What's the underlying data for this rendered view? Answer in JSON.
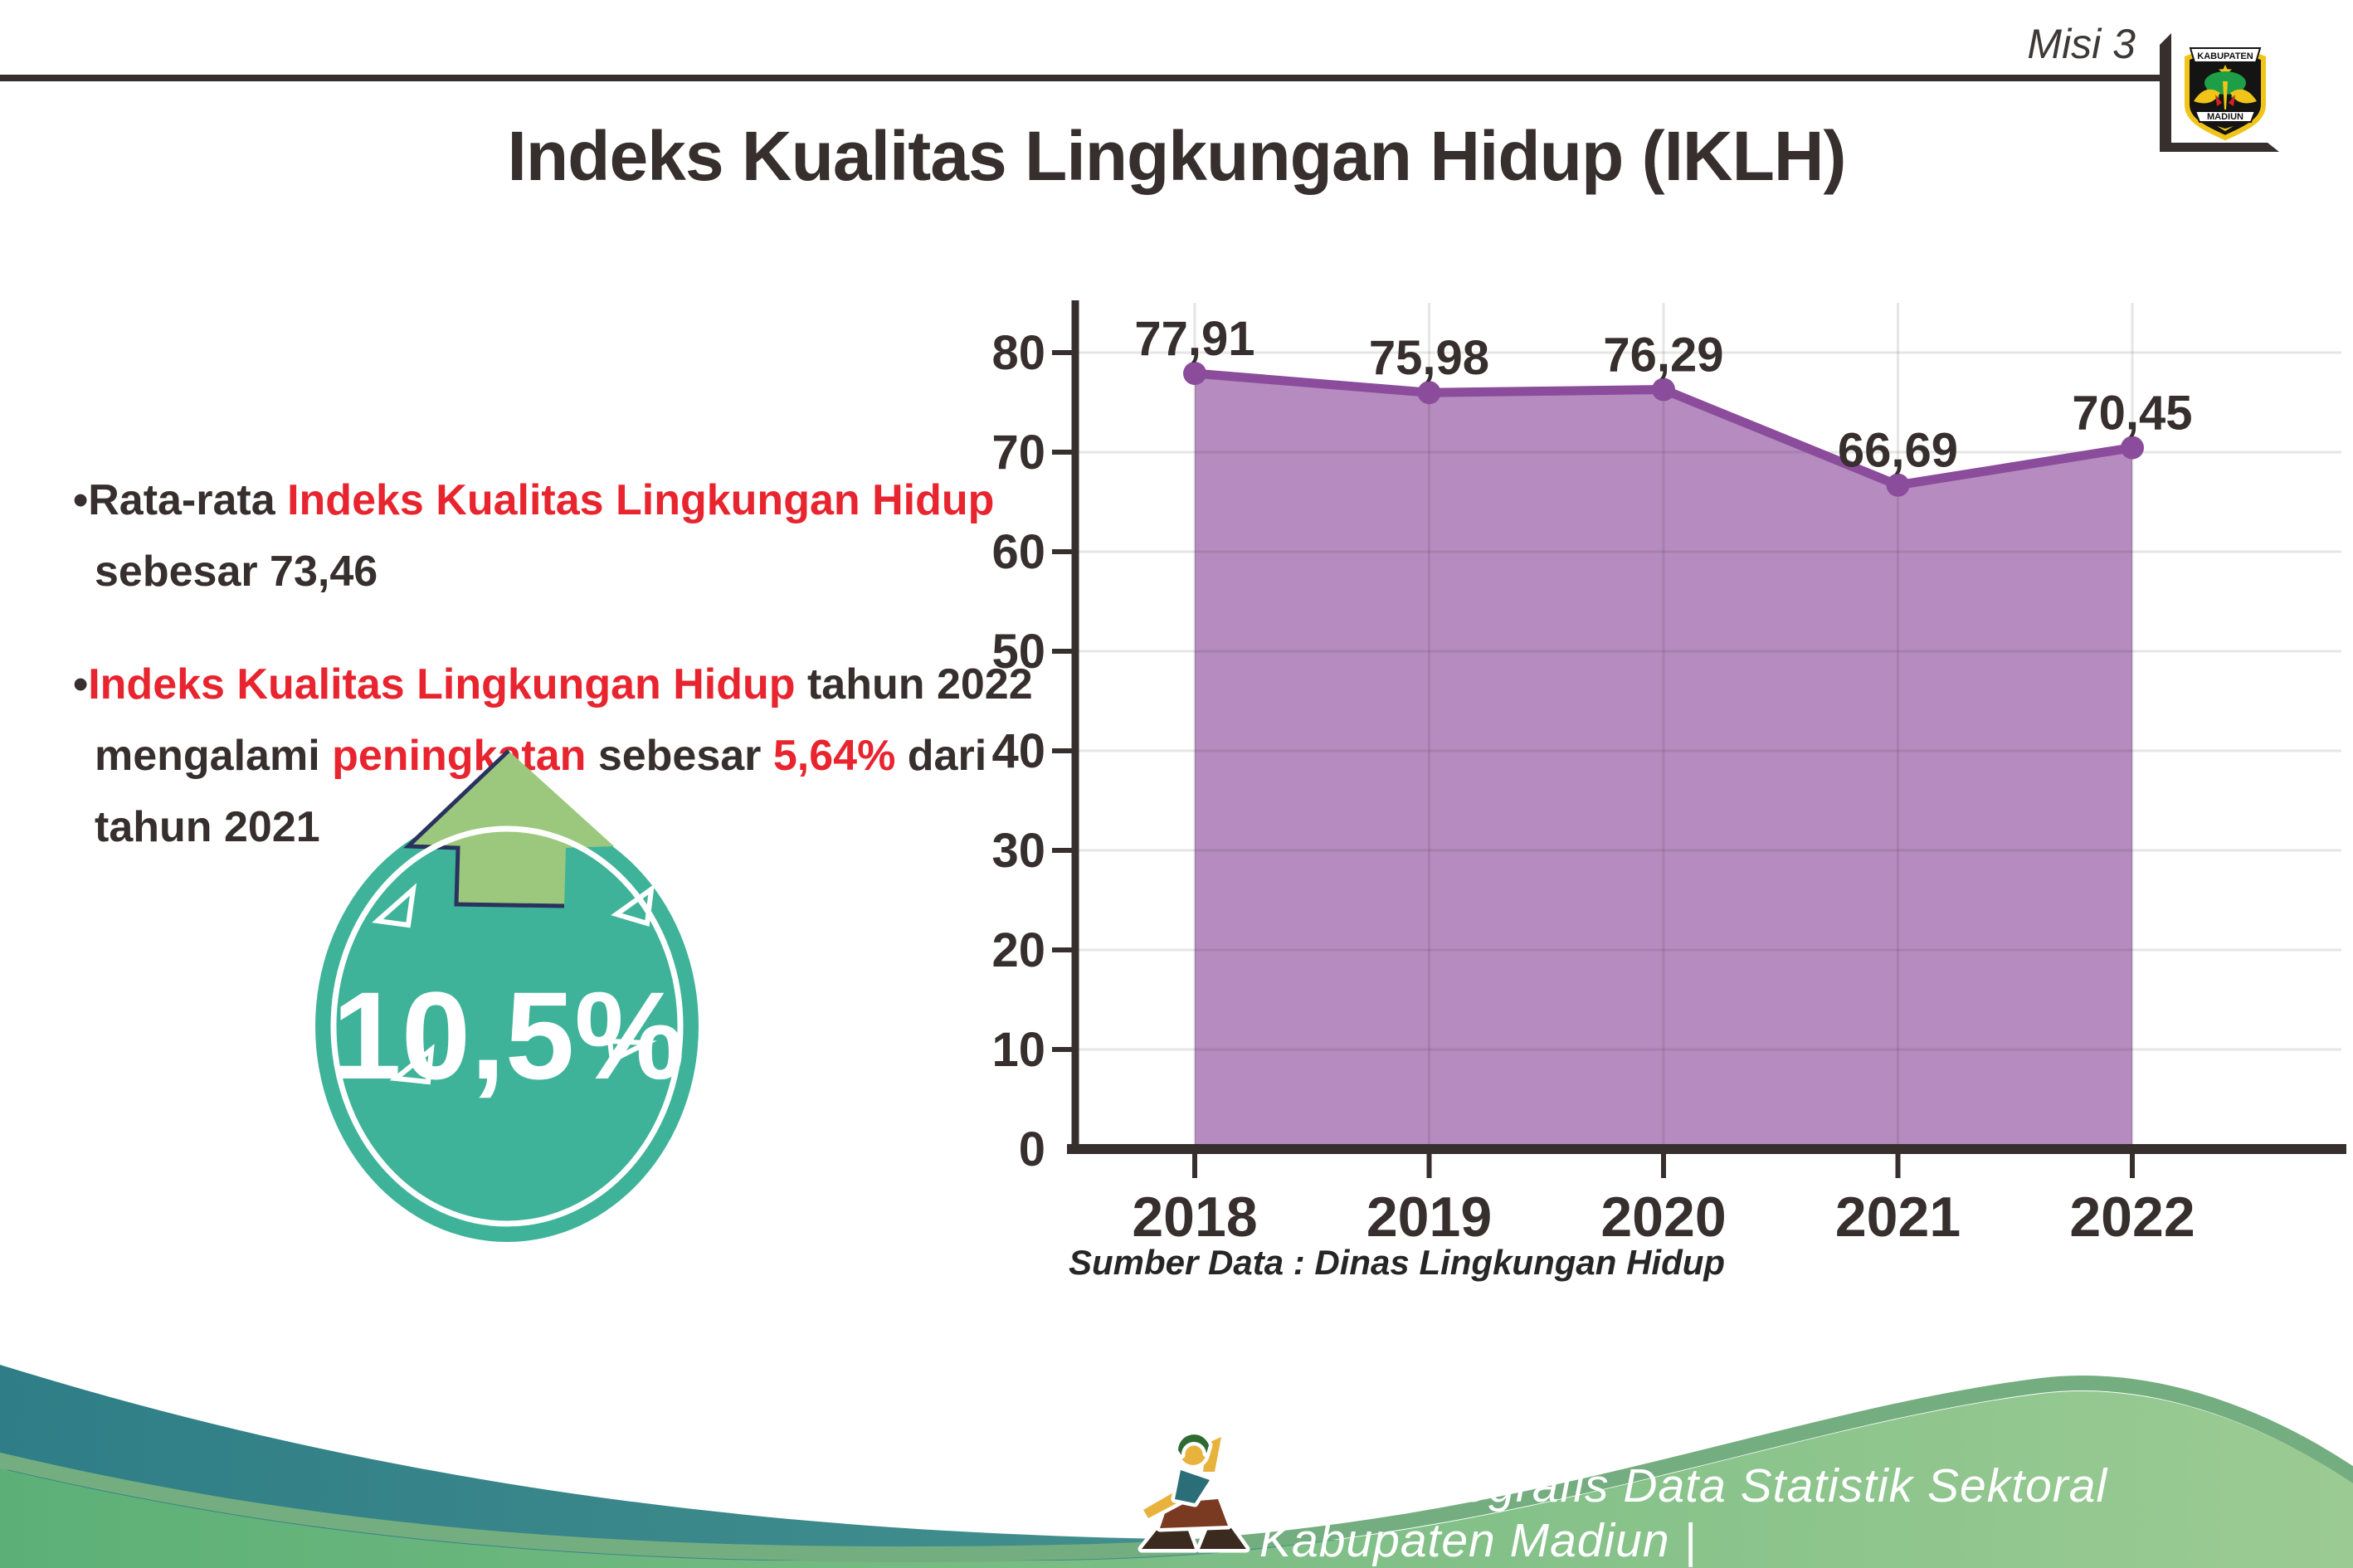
{
  "header": {
    "misi": "Misi 3",
    "title": "Indeks Kualitas Lingkungan Hidup (IKLH)",
    "logo_top": "KABUPATEN",
    "logo_bottom": "MADIUN"
  },
  "bullet_glyph": "•",
  "bullets": [
    {
      "lines": [
        [
          {
            "t": "Rata-rata ",
            "c": "dark"
          },
          {
            "t": "Indeks Kualitas Lingkungan Hidup",
            "c": "red"
          }
        ],
        [
          {
            "t": "sebesar 73,46",
            "c": "dark"
          }
        ]
      ]
    },
    {
      "lines": [
        [
          {
            "t": "Indeks Kualitas Lingkungan Hidup",
            "c": "red"
          },
          {
            "t": " tahun 2022",
            "c": "dark"
          }
        ],
        [
          {
            "t": "mengalami ",
            "c": "dark"
          },
          {
            "t": "peningkatan",
            "c": "red"
          },
          {
            "t": " sebesar ",
            "c": "dark"
          },
          {
            "t": "5,64%",
            "c": "red"
          },
          {
            "t": " dari",
            "c": "dark"
          }
        ],
        [
          {
            "t": "tahun 2021",
            "c": "dark"
          }
        ]
      ]
    }
  ],
  "badge": {
    "value": "10,5%"
  },
  "chart_data": {
    "type": "area",
    "title": "",
    "categories": [
      "2018",
      "2019",
      "2020",
      "2021",
      "2022"
    ],
    "values": [
      77.91,
      75.98,
      76.29,
      66.69,
      70.45
    ],
    "value_labels": [
      "77,91",
      "75,98",
      "76,29",
      "66,69",
      "70,45"
    ],
    "ylim": [
      0,
      80
    ],
    "ytick_step": 10,
    "grid": true,
    "legend": "none",
    "fill_color": "#b58bc0",
    "line_color": "#8b4d9b",
    "source": "Sumber Data : Dinas Lingkungan Hidup"
  },
  "footer": {
    "caption": "Media Infografis Data Statistik Sektoral Kabupaten Madiun |"
  },
  "colors": {
    "dark": "#362f2d",
    "red": "#e8242f",
    "badge_teal": "#3fb39a",
    "arrow_green": "#9cc87e",
    "arrow_outline": "#29335e",
    "chart_fill": "#b58bc0",
    "chart_line": "#8b4d9b",
    "footer_teal": "#2f7e87",
    "footer_green": "#63b77c"
  }
}
